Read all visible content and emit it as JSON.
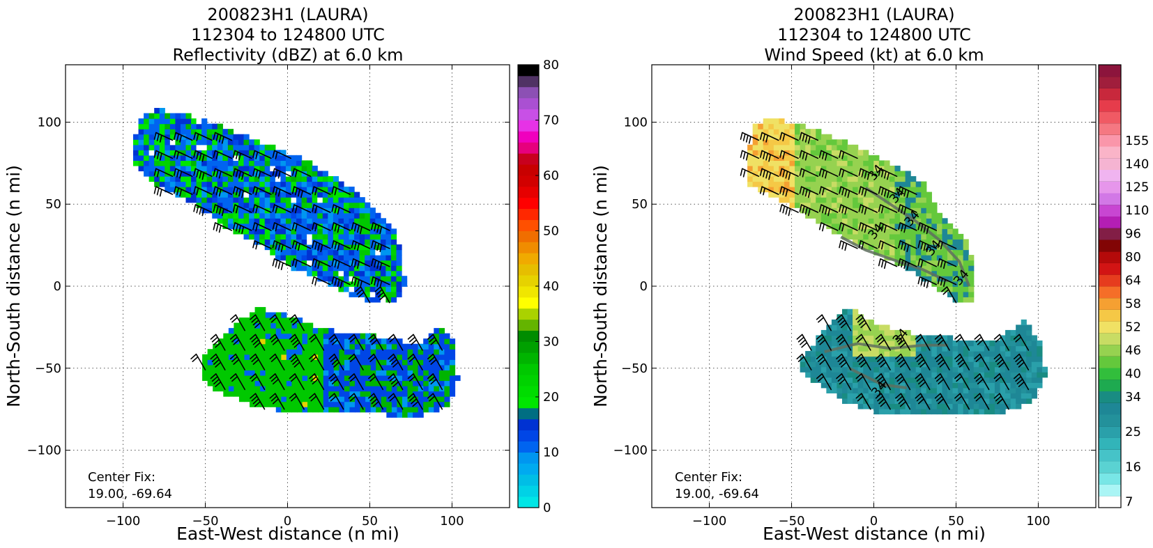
{
  "chart_data": [
    {
      "type": "heatmap",
      "title_lines": [
        "200823H1 (LAURA)",
        "112304 to 124800 UTC",
        "Reflectivity (dBZ) at 6.0 km"
      ],
      "xlabel": "East-West distance (n mi)",
      "ylabel": "North-South distance (n mi)",
      "xlim": [
        -135,
        135
      ],
      "ylim": [
        -135,
        135
      ],
      "xticks": [
        -100,
        -50,
        0,
        50,
        100
      ],
      "yticks": [
        -100,
        -50,
        0,
        50,
        100
      ],
      "grid": true,
      "annotation": [
        "Center Fix:",
        "19.00, -69.64"
      ],
      "colorbar": {
        "range": [
          0,
          80
        ],
        "tick_values": [
          0,
          10,
          20,
          30,
          40,
          50,
          60,
          70,
          80
        ],
        "colors": [
          "#00e6e6",
          "#00d2e6",
          "#00bee6",
          "#00aaf0",
          "#0096f0",
          "#0064f0",
          "#0046e6",
          "#0032d2",
          "#006e82",
          "#00e600",
          "#00dc00",
          "#00d200",
          "#00c800",
          "#00b400",
          "#00a000",
          "#008c00",
          "#64b400",
          "#aad200",
          "#ffff00",
          "#f0e600",
          "#e6d200",
          "#e6be00",
          "#f0aa00",
          "#f08c00",
          "#f06e00",
          "#ff5000",
          "#ff2800",
          "#ff0000",
          "#e60000",
          "#d20000",
          "#c80000",
          "#c8001e",
          "#e6007d",
          "#f000be",
          "#e632e6",
          "#c850e6",
          "#aa50d2",
          "#8c50b4",
          "#503264",
          "#000000"
        ]
      },
      "storm_regions": [
        {
          "name": "northern band",
          "x": [
            -97,
            -92,
            -82,
            -65,
            -40,
            -10,
            10,
            35,
            50,
            62,
            68,
            70,
            64,
            55,
            40,
            20,
            0,
            -20,
            -40,
            -60,
            -85,
            -97
          ],
          "y": [
            75,
            100,
            106,
            104,
            95,
            83,
            75,
            60,
            45,
            36,
            20,
            0,
            -13,
            -12,
            -8,
            2,
            10,
            25,
            35,
            50,
            62,
            75
          ]
        },
        {
          "name": "southern band",
          "x": [
            -52,
            -40,
            -20,
            0,
            20,
            40,
            60,
            80,
            90,
            100,
            102,
            95,
            80,
            60,
            40,
            20,
            0,
            -20,
            -45,
            -55
          ],
          "y": [
            -45,
            -30,
            -15,
            -20,
            -28,
            -30,
            -33,
            -38,
            -25,
            -35,
            -60,
            -75,
            -80,
            -80,
            -78,
            -78,
            -78,
            -75,
            -65,
            -55
          ]
        }
      ]
    },
    {
      "type": "heatmap",
      "title_lines": [
        "200823H1 (LAURA)",
        "112304 to 124800 UTC",
        "Wind Speed (kt) at 6.0 km"
      ],
      "xlabel": "East-West distance (n mi)",
      "ylabel": "North-South distance (n mi)",
      "xlim": [
        -135,
        135
      ],
      "ylim": [
        -135,
        135
      ],
      "xticks": [
        -100,
        -50,
        0,
        50,
        100
      ],
      "yticks": [
        -100,
        -50,
        0,
        50,
        100
      ],
      "grid": true,
      "annotation": [
        "Center Fix:",
        "19.00, -69.64"
      ],
      "contour_label": "34",
      "colorbar": {
        "tick_labels": [
          "7",
          "16",
          "25",
          "34",
          "40",
          "46",
          "52",
          "58",
          "64",
          "80",
          "96",
          "110",
          "125",
          "140",
          "155"
        ],
        "tick_bins": [
          0,
          3,
          6,
          9,
          11,
          13,
          15,
          17,
          19,
          21,
          23,
          25,
          27,
          29,
          31
        ],
        "colors": [
          "#ffffff",
          "#aaf5f5",
          "#78e6e6",
          "#5ad2d2",
          "#46c3c8",
          "#32b4b9",
          "#2aa0aa",
          "#23919b",
          "#1e8796",
          "#198c82",
          "#1eaa50",
          "#32be3c",
          "#64c83c",
          "#96d250",
          "#c8dc64",
          "#f0e164",
          "#f5c846",
          "#f5a032",
          "#f56e28",
          "#e63c1e",
          "#d21414",
          "#b40a0a",
          "#820505",
          "#821e46",
          "#b41eb4",
          "#c846d2",
          "#d278e6",
          "#e696eb",
          "#f0b4f0",
          "#f5b4d2",
          "#fab4c8",
          "#fa96aa",
          "#f57882",
          "#f05a64",
          "#e63c4b",
          "#c8283c",
          "#a01e3c",
          "#8c143c"
        ]
      },
      "storm_regions": [
        {
          "name": "northern band",
          "x": [
            -80,
            -75,
            -60,
            -40,
            -15,
            10,
            30,
            38,
            55,
            60,
            60,
            50,
            40,
            25,
            5,
            -15,
            -40,
            -60,
            -78,
            -80
          ],
          "y": [
            65,
            98,
            100,
            95,
            85,
            73,
            60,
            45,
            25,
            10,
            -10,
            -13,
            -5,
            5,
            15,
            25,
            40,
            52,
            60,
            65
          ]
        },
        {
          "name": "southern band",
          "x": [
            -45,
            -25,
            -15,
            0,
            20,
            45,
            70,
            90,
            100,
            103,
            95,
            80,
            60,
            40,
            20,
            0,
            -20,
            -45,
            -48
          ],
          "y": [
            -45,
            -20,
            -15,
            -25,
            -30,
            -33,
            -36,
            -23,
            -35,
            -55,
            -72,
            -78,
            -78,
            -78,
            -78,
            -78,
            -72,
            -55,
            -48
          ]
        }
      ]
    }
  ]
}
